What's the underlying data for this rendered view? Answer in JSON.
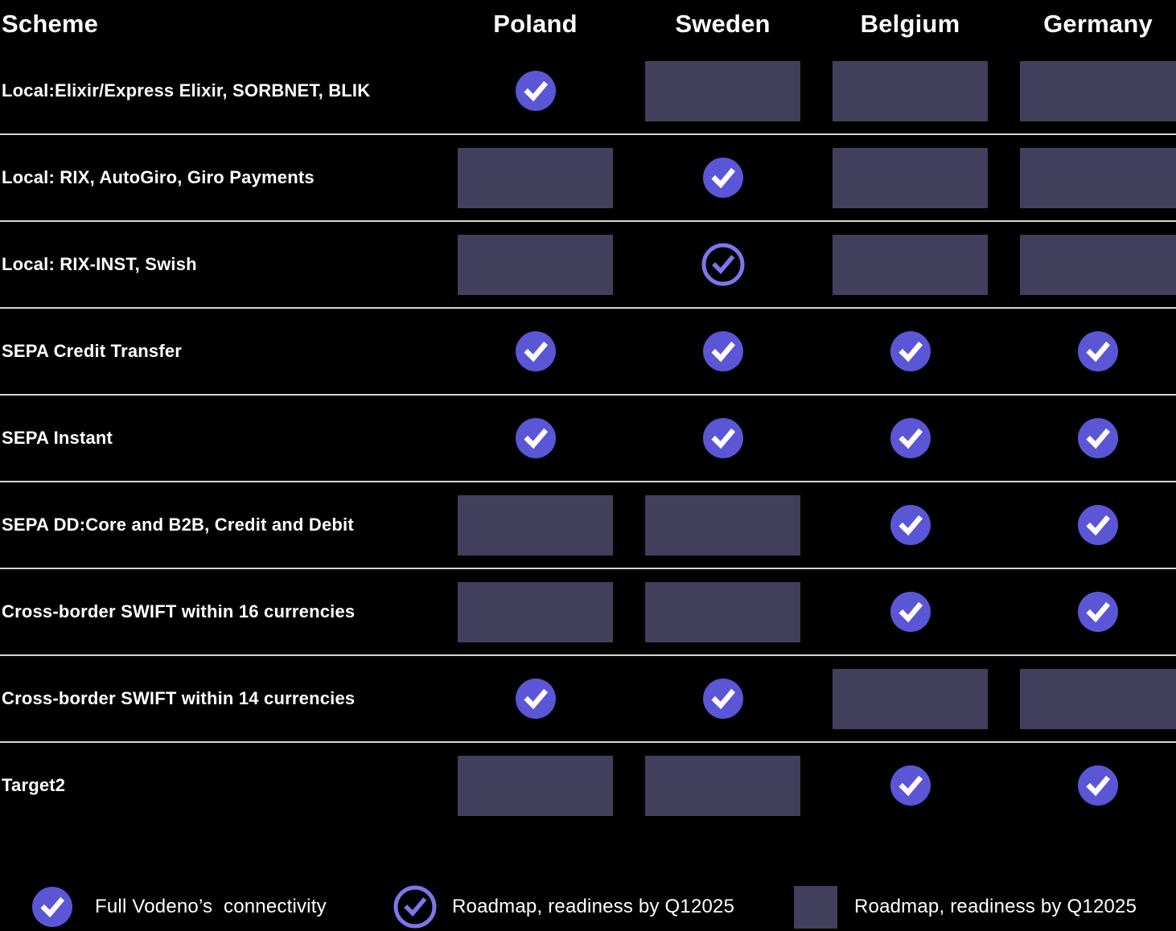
{
  "table": {
    "header": {
      "scheme": "Scheme",
      "countries": [
        "Poland",
        "Sweden",
        "Belgium",
        "Germany"
      ]
    },
    "rows": [
      {
        "label": "Local:Elixir/Express Elixir, SORBNET, BLIK",
        "cells": [
          "check",
          "roadmap",
          "roadmap",
          "roadmap"
        ]
      },
      {
        "label": "Local: RIX, AutoGiro, Giro Payments",
        "cells": [
          "roadmap",
          "check",
          "roadmap",
          "roadmap"
        ]
      },
      {
        "label": "Local: RIX-INST, Swish",
        "cells": [
          "roadmap",
          "check-outline",
          "roadmap",
          "roadmap"
        ]
      },
      {
        "label": "SEPA Credit Transfer",
        "cells": [
          "check",
          "check",
          "check",
          "check"
        ]
      },
      {
        "label": "SEPA Instant",
        "cells": [
          "check",
          "check",
          "check",
          "check"
        ]
      },
      {
        "label": "SEPA DD:Core and B2B, Credit and Debit",
        "cells": [
          "roadmap",
          "roadmap",
          "check",
          "check"
        ]
      },
      {
        "label": "Cross-border SWIFT within 16 currencies",
        "cells": [
          "roadmap",
          "roadmap",
          "check",
          "check"
        ]
      },
      {
        "label": "Cross-border SWIFT within 14 currencies",
        "cells": [
          "check",
          "check",
          "roadmap",
          "roadmap"
        ]
      },
      {
        "label": "Target2",
        "cells": [
          "roadmap",
          "roadmap",
          "check",
          "check"
        ]
      }
    ],
    "cell_legend_note": {
      "check": "Full Vodeno's connectivity",
      "check-outline": "Roadmap, readiness by Q12025",
      "roadmap": "Roadmap, readiness by Q12025"
    }
  },
  "legend": {
    "items": [
      {
        "icon": "check-filled-icon",
        "label": "Full Vodeno’s  connectivity"
      },
      {
        "icon": "check-outline-icon",
        "label": "Roadmap, readiness by Q12025"
      },
      {
        "icon": "roadmap-swatch",
        "label": "Roadmap, readiness by Q12025"
      }
    ]
  },
  "colors": {
    "background": "#000000",
    "accent_filled": "#5a56d6",
    "accent_outline": "#7b77ea",
    "roadmap_rect": "#413f5b",
    "separator": "#d8d5d1",
    "text": "#ffffff"
  }
}
